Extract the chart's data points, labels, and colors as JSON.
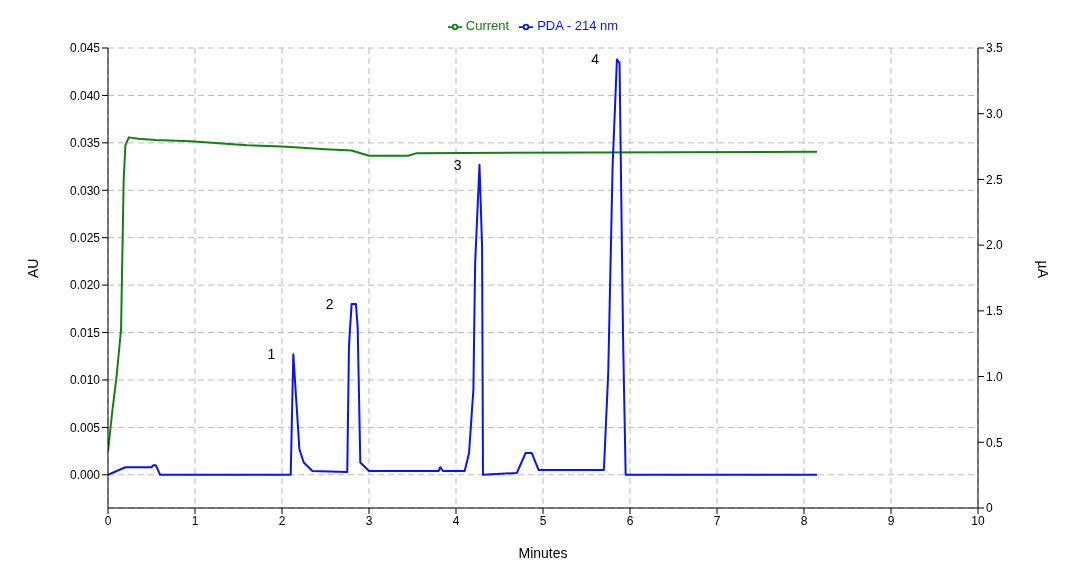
{
  "chart_data": {
    "type": "line",
    "xlabel": "Minutes",
    "ylabel": "AU",
    "y2label": "µA",
    "xlim": [
      0,
      10
    ],
    "xticks": [
      0,
      1,
      2,
      3,
      4,
      5,
      6,
      7,
      8,
      9,
      10
    ],
    "ylim": [
      -0.0035,
      0.045
    ],
    "yticks": [
      {
        "value": 0,
        "label": "0.000"
      },
      {
        "value": 0.005,
        "label": "0.005"
      },
      {
        "value": 0.01,
        "label": "0.010"
      },
      {
        "value": 0.015,
        "label": "0.015"
      },
      {
        "value": 0.02,
        "label": "0.020"
      },
      {
        "value": 0.025,
        "label": "0.025"
      },
      {
        "value": 0.03,
        "label": "0.030"
      },
      {
        "value": 0.035,
        "label": "0.035"
      },
      {
        "value": 0.04,
        "label": "0.040"
      },
      {
        "value": 0.045,
        "label": "0.045"
      }
    ],
    "y2lim": [
      0,
      3.5
    ],
    "y2ticks": [
      0,
      {
        "value": 0.5,
        "label": "0.5"
      },
      {
        "value": 1,
        "label": "1.0"
      },
      {
        "value": 1.5,
        "label": "1.5"
      },
      {
        "value": 2,
        "label": "2.0"
      },
      {
        "value": 2.5,
        "label": "2.5"
      },
      {
        "value": 3,
        "label": "3.0"
      },
      {
        "value": 3.5,
        "label": "3.5"
      }
    ],
    "grid": true,
    "legend": "top",
    "marker": "none",
    "line_style": "solid",
    "series": [
      {
        "name": "Current",
        "color": "#138013",
        "axis": "y2",
        "x": [
          0,
          0.05,
          0.1,
          0.15,
          0.17,
          0.18,
          0.2,
          0.24,
          0.35,
          0.55,
          0.95,
          1.6,
          2.0,
          2.5,
          2.8,
          3.0,
          3.45,
          3.55,
          8.15
        ],
        "values": [
          0.43,
          0.74,
          1.01,
          1.36,
          2.11,
          2.49,
          2.76,
          2.82,
          2.81,
          2.8,
          2.79,
          2.76,
          2.75,
          2.73,
          2.72,
          2.68,
          2.68,
          2.7,
          2.71
        ]
      },
      {
        "name": "PDA - 214 nm",
        "color": "#0a14f0",
        "axis": "y",
        "x": [
          0,
          0.1,
          0.2,
          0.5,
          0.52,
          0.55,
          0.6,
          2.1,
          2.13,
          2.17,
          2.2,
          2.25,
          2.35,
          2.75,
          2.77,
          2.8,
          2.85,
          2.87,
          2.9,
          3.0,
          3.8,
          3.82,
          3.85,
          4.1,
          4.15,
          4.2,
          4.22,
          4.27,
          4.3,
          4.31,
          4.7,
          4.8,
          4.87,
          4.95,
          5.7,
          5.75,
          5.8,
          5.85,
          5.88,
          5.92,
          5.95,
          8.15
        ],
        "values": [
          0,
          0.0004,
          0.0008,
          0.0008,
          0.001,
          0.001,
          0,
          0,
          0.0127,
          0.007,
          0.0027,
          0.0013,
          0.0004,
          0.0003,
          0.0136,
          0.018,
          0.018,
          0.0155,
          0.0013,
          0.0004,
          0.0004,
          0.0008,
          0.0004,
          0.0004,
          0.0023,
          0.009,
          0.0223,
          0.0327,
          0.024,
          0,
          0.0002,
          0.0023,
          0.0023,
          0.0005,
          0.0005,
          0.0108,
          0.0325,
          0.0438,
          0.0434,
          0.0146,
          0,
          0
        ]
      }
    ],
    "annotations": [
      {
        "text": "1",
        "x": 2.13,
        "y": 0.0127
      },
      {
        "text": "2",
        "x": 2.8,
        "y": 0.018
      },
      {
        "text": "3",
        "x": 4.27,
        "y": 0.0327
      },
      {
        "text": "4",
        "x": 5.85,
        "y": 0.0438
      }
    ]
  }
}
